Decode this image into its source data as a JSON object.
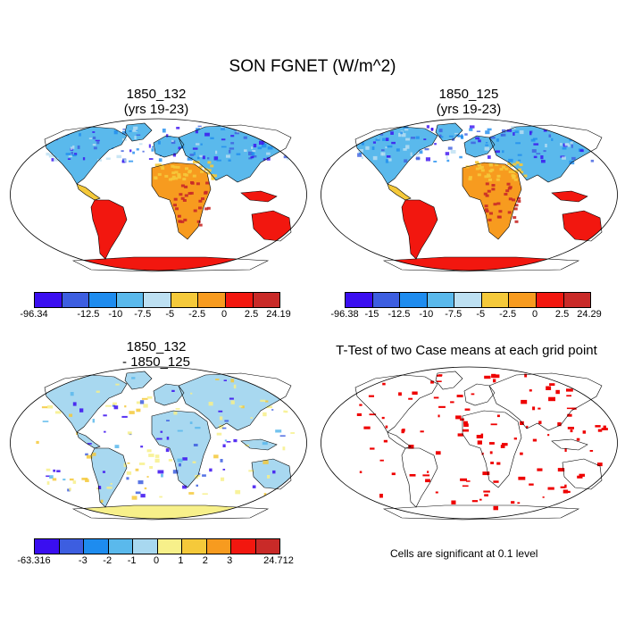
{
  "title": "SON FGNET (W/m^2)",
  "panels": {
    "p1": {
      "title_line1": "1850_132",
      "title_line2": "(yrs 19-23)"
    },
    "p2": {
      "title_line1": "1850_125",
      "title_line2": "(yrs 19-23)"
    },
    "p3": {
      "title_line1": "1850_132",
      "title_line2": "- 1850_125"
    },
    "p4": {
      "title_line1": "T-Test of two Case means at each grid point",
      "note": "Cells are significant at 0.1 level"
    }
  },
  "colorbars": {
    "cb1": {
      "colors": [
        "#3a0ef0",
        "#3d5ee0",
        "#1e8cef",
        "#5ab9ec",
        "#bde0f2",
        "#f5c93a",
        "#f79b1f",
        "#f2170f",
        "#c92a28"
      ],
      "labels": [
        "-96.34",
        "",
        "-12.5",
        "-10",
        "-7.5",
        "-5",
        "-2.5",
        "0",
        "2.5",
        "24.19"
      ]
    },
    "cb2": {
      "colors": [
        "#3a0ef0",
        "#3d5ee0",
        "#1e8cef",
        "#5ab9ec",
        "#bde0f2",
        "#f5c93a",
        "#f79b1f",
        "#f2170f",
        "#c92a28"
      ],
      "labels": [
        "-96.38",
        "-15",
        "-12.5",
        "-10",
        "-7.5",
        "-5",
        "-2.5",
        "0",
        "2.5",
        "24.29"
      ]
    },
    "cb3": {
      "colors": [
        "#3a0ef0",
        "#3d5ee0",
        "#1e8cef",
        "#5ab9ec",
        "#a8d8f0",
        "#f7f08a",
        "#f5c93a",
        "#f79b1f",
        "#f2170f",
        "#c92a28"
      ],
      "labels": [
        "-63.316",
        "",
        "-3",
        "-2",
        "-1",
        "0",
        "1",
        "2",
        "3",
        "",
        "24.712"
      ]
    }
  },
  "colors": {
    "significant": "#ee0000",
    "coastline": "#000000"
  }
}
